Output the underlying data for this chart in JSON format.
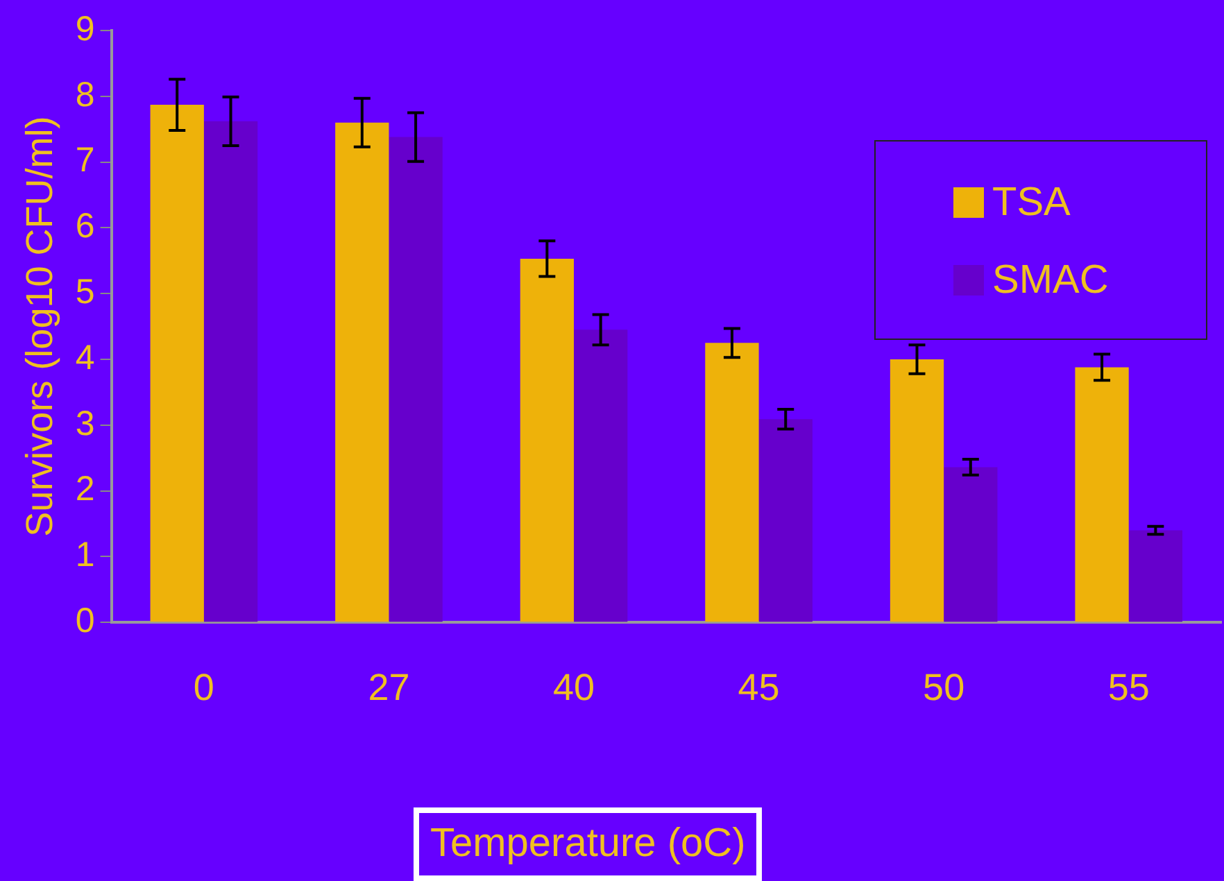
{
  "chart_data": {
    "type": "bar",
    "xlabel": "Temperature (oC)",
    "ylabel": "Survivors (log10 CFU/ml)",
    "categories": [
      "0",
      "27",
      "40",
      "45",
      "50",
      "55"
    ],
    "series": [
      {
        "name": "TSA",
        "color": "#eeb20a",
        "values": [
          7.87,
          7.6,
          5.53,
          4.25,
          4.0,
          3.88
        ],
        "errors": [
          0.39,
          0.37,
          0.27,
          0.22,
          0.22,
          0.2
        ]
      },
      {
        "name": "SMAC",
        "color": "#6600cc",
        "values": [
          7.62,
          7.38,
          4.45,
          3.09,
          2.36,
          1.4
        ],
        "errors": [
          0.37,
          0.37,
          0.23,
          0.15,
          0.12,
          0.06
        ]
      }
    ],
    "ylim": [
      0,
      9
    ],
    "yticks": [
      0,
      1,
      2,
      3,
      4,
      5,
      6,
      7,
      8,
      9
    ],
    "grid": false,
    "legend": "top right"
  }
}
